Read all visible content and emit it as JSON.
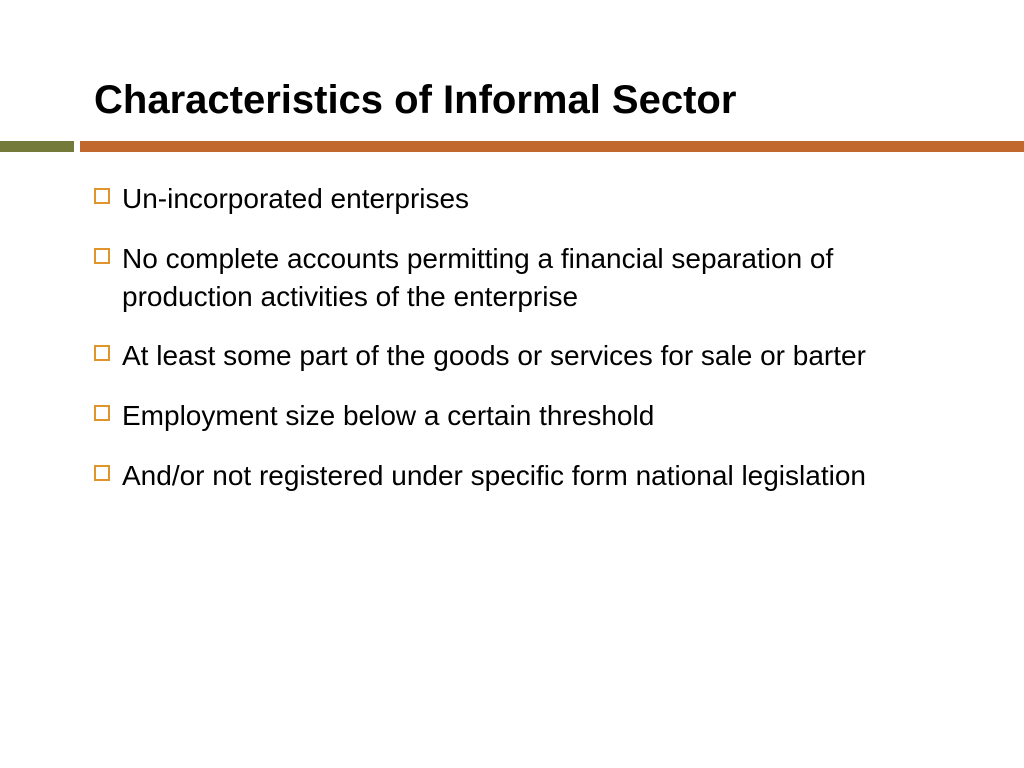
{
  "slide": {
    "title": "Characteristics of Informal Sector",
    "title_fontsize": 40,
    "title_color": "#000000",
    "accent": {
      "olive_color": "#747a3a",
      "orange_color": "#c0682d",
      "olive_width": 74,
      "gap_width": 6,
      "height": 11
    },
    "bullets": [
      {
        "text": "Un-incorporated enterprises"
      },
      {
        "text": "No complete accounts permitting a financial separation of production activities of the enterprise"
      },
      {
        "text": "At least some part of the goods or services for sale or barter"
      },
      {
        "text": "Employment size below a certain threshold"
      },
      {
        "text": "And/or not registered under specific form national legislation"
      }
    ],
    "bullet_marker_color": "#e0952c",
    "bullet_fontsize": 28,
    "background_color": "#ffffff"
  }
}
